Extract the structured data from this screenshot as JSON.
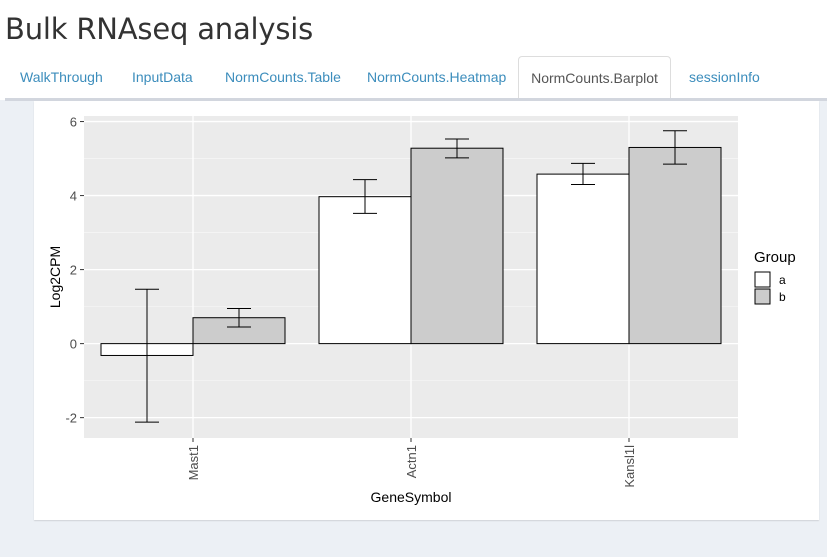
{
  "header": {
    "title": "Bulk RNAseq analysis"
  },
  "tabs": [
    {
      "label": "WalkThrough",
      "active": false
    },
    {
      "label": "InputData",
      "active": false
    },
    {
      "label": "NormCounts.Table",
      "active": false
    },
    {
      "label": "NormCounts.Heatmap",
      "active": false
    },
    {
      "label": "NormCounts.Barplot",
      "active": true
    },
    {
      "label": "sessionInfo",
      "active": false
    }
  ],
  "chart_data": {
    "type": "bar",
    "xlabel": "GeneSymbol",
    "ylabel": "Log2CPM",
    "categories": [
      "Mast1",
      "Actn1",
      "Kansl1l"
    ],
    "ylim": [
      -2.55,
      6.15
    ],
    "yticks": [
      -2,
      0,
      2,
      4,
      6
    ],
    "grid": true,
    "legend_title": "Group",
    "legend_position": "right",
    "series": [
      {
        "name": "a",
        "color": "#ffffff",
        "values": [
          -0.32,
          3.97,
          4.58
        ],
        "err_low": [
          -2.12,
          3.52,
          4.3
        ],
        "err_high": [
          1.47,
          4.43,
          4.87
        ]
      },
      {
        "name": "b",
        "color": "#cccccc",
        "values": [
          0.7,
          5.28,
          5.3
        ],
        "err_low": [
          0.45,
          5.02,
          4.85
        ],
        "err_high": [
          0.95,
          5.53,
          5.75
        ]
      }
    ]
  }
}
